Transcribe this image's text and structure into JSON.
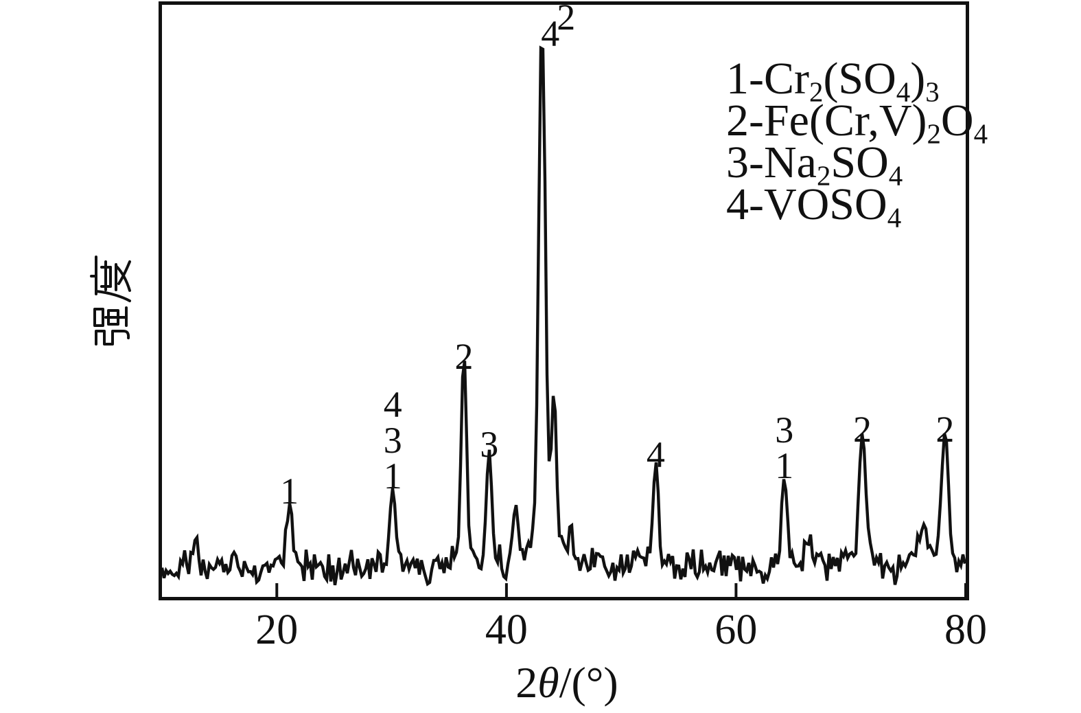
{
  "figure": {
    "background": "#ffffff",
    "ink": "#111111",
    "kind": "XRD diffraction pattern"
  },
  "chart_data": {
    "type": "line",
    "title": "",
    "xlabel_plain": "2θ/(°)",
    "xlabel_segments": [
      {
        "t": "2"
      },
      {
        "t": "θ",
        "italic": true
      },
      {
        "t": "/(°)"
      }
    ],
    "ylabel": "强度",
    "x_range": [
      10,
      80
    ],
    "x_ticks": [
      20,
      40,
      60,
      80
    ],
    "y_axis_note": "intensity, arbitrary units, no ticks",
    "noise": {
      "seed": 9,
      "amplitude": 30,
      "baseline_intensity": 6
    },
    "peaks": [
      {
        "two_theta": 12.9,
        "intensity": 5
      },
      {
        "two_theta": 21.1,
        "intensity": 11,
        "labels": [
          {
            "t": "1",
            "dy": -6
          }
        ]
      },
      {
        "two_theta": 30.1,
        "intensity": 14,
        "labels": [
          {
            "t": "4",
            "dy": -110
          },
          {
            "t": "3",
            "dy": -58
          },
          {
            "t": "1",
            "dy": -6
          }
        ]
      },
      {
        "two_theta": 36.3,
        "intensity": 37,
        "labels": [
          {
            "t": "2",
            "dy": -6
          }
        ]
      },
      {
        "two_theta": 38.5,
        "intensity": 20,
        "labels": [
          {
            "t": "3",
            "dy": -6
          }
        ]
      },
      {
        "two_theta": 40.8,
        "intensity": 10
      },
      {
        "two_theta": 43.1,
        "intensity": 100,
        "sigma": 0.26,
        "labels": [
          {
            "t": "4",
            "dx": 12,
            "dy": -2
          },
          {
            "t": "2",
            "dx": 35,
            "dy": -26
          }
        ]
      },
      {
        "two_theta": 44.15,
        "intensity": 26,
        "sigma": 0.2
      },
      {
        "two_theta": 45.5,
        "intensity": 6
      },
      {
        "two_theta": 53.0,
        "intensity": 18,
        "labels": [
          {
            "t": "4",
            "dy": -6
          }
        ]
      },
      {
        "two_theta": 64.2,
        "intensity": 16,
        "labels": [
          {
            "t": "3",
            "dy": -58
          },
          {
            "t": "1",
            "dy": -6
          }
        ]
      },
      {
        "two_theta": 66.3,
        "intensity": 6
      },
      {
        "two_theta": 71.0,
        "intensity": 23,
        "sigma": 0.28,
        "labels": [
          {
            "t": "2",
            "dy": -6
          }
        ]
      },
      {
        "two_theta": 76.2,
        "intensity": 7,
        "sigma": 0.4
      },
      {
        "two_theta": 78.2,
        "intensity": 23,
        "sigma": 0.3,
        "labels": [
          {
            "t": "2",
            "dy": -6
          }
        ]
      }
    ],
    "legend_entries": [
      {
        "plain": "1-Cr2(SO4)3",
        "segments": [
          {
            "t": "1-Cr"
          },
          {
            "t": "2",
            "sub": true
          },
          {
            "t": "(SO"
          },
          {
            "t": "4",
            "sub": true
          },
          {
            "t": ")"
          },
          {
            "t": "3",
            "sub": true
          }
        ]
      },
      {
        "plain": "2-Fe(Cr,V)2O4",
        "segments": [
          {
            "t": "2-Fe(Cr,V)"
          },
          {
            "t": "2",
            "sub": true
          },
          {
            "t": "O"
          },
          {
            "t": "4",
            "sub": true
          }
        ]
      },
      {
        "plain": "3-Na2SO4",
        "segments": [
          {
            "t": "3-Na"
          },
          {
            "t": "2",
            "sub": true
          },
          {
            "t": "SO"
          },
          {
            "t": "4",
            "sub": true
          }
        ]
      },
      {
        "plain": "4-VOSO4",
        "segments": [
          {
            "t": "4-VOSO"
          },
          {
            "t": "4",
            "sub": true
          }
        ]
      }
    ],
    "legend_position": "top-right"
  }
}
